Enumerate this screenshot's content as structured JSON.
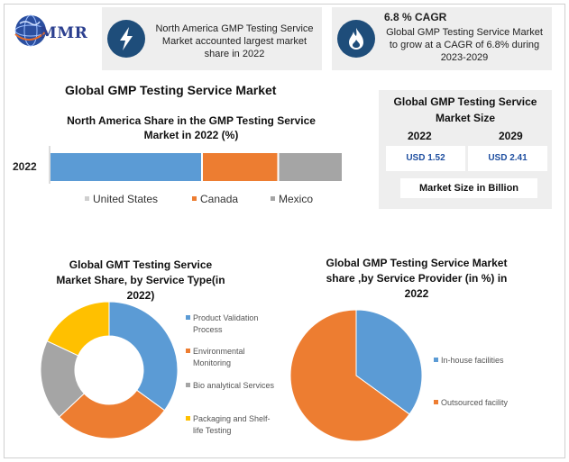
{
  "logo": {
    "text": "MMR"
  },
  "info_cards": [
    {
      "icon": "lightning-icon",
      "text": "North America GMP Testing Service Market accounted largest market share in 2022",
      "color": "#1e4d7a"
    },
    {
      "icon": "flame-icon",
      "title": "6.8 % CAGR",
      "text": "Global GMP Testing Service Market to grow at a CAGR of 6.8% during 2023-2029",
      "color": "#1e4d7a"
    }
  ],
  "market_title": "Global GMP Testing Service Market",
  "market_size": {
    "title": "Global GMP Testing Service Market Size",
    "years": [
      "2022",
      "2029"
    ],
    "values": [
      "USD 1.52",
      "USD 2.41"
    ],
    "unit": "Market Size in Billion"
  },
  "chart_data": [
    {
      "type": "bar",
      "orientation": "horizontal-stacked",
      "title": "North America Share in the GMP Testing Service Market in 2022 (%)",
      "categories": [
        "2022"
      ],
      "series": [
        {
          "name": "United States",
          "values": [
            52
          ],
          "color": "#5b9bd5"
        },
        {
          "name": "Canada",
          "values": [
            26
          ],
          "color": "#ed7d31"
        },
        {
          "name": "Mexico",
          "values": [
            22
          ],
          "color": "#a5a5a5"
        }
      ],
      "xlim": [
        0,
        100
      ],
      "legend": "bottom"
    },
    {
      "type": "pie",
      "style": "donut",
      "title": "Global GMT Testing Service Market Share, by Service Type(in 2022)",
      "labels": [
        "Product Validation Process",
        "Environmental Monitoring",
        "Bio analytical Services",
        "Packaging and Shelf-life Testing"
      ],
      "values": [
        35,
        28,
        19,
        18
      ],
      "colors": [
        "#5b9bd5",
        "#ed7d31",
        "#a5a5a5",
        "#ffc000"
      ],
      "legend": "right"
    },
    {
      "type": "pie",
      "title": "Global GMP Testing Service Market share ,by Service Provider (in %) in 2022",
      "labels": [
        "In-house facilities",
        "Outsourced facility"
      ],
      "values": [
        35,
        65
      ],
      "colors": [
        "#5b9bd5",
        "#ed7d31"
      ],
      "legend": "right"
    }
  ]
}
